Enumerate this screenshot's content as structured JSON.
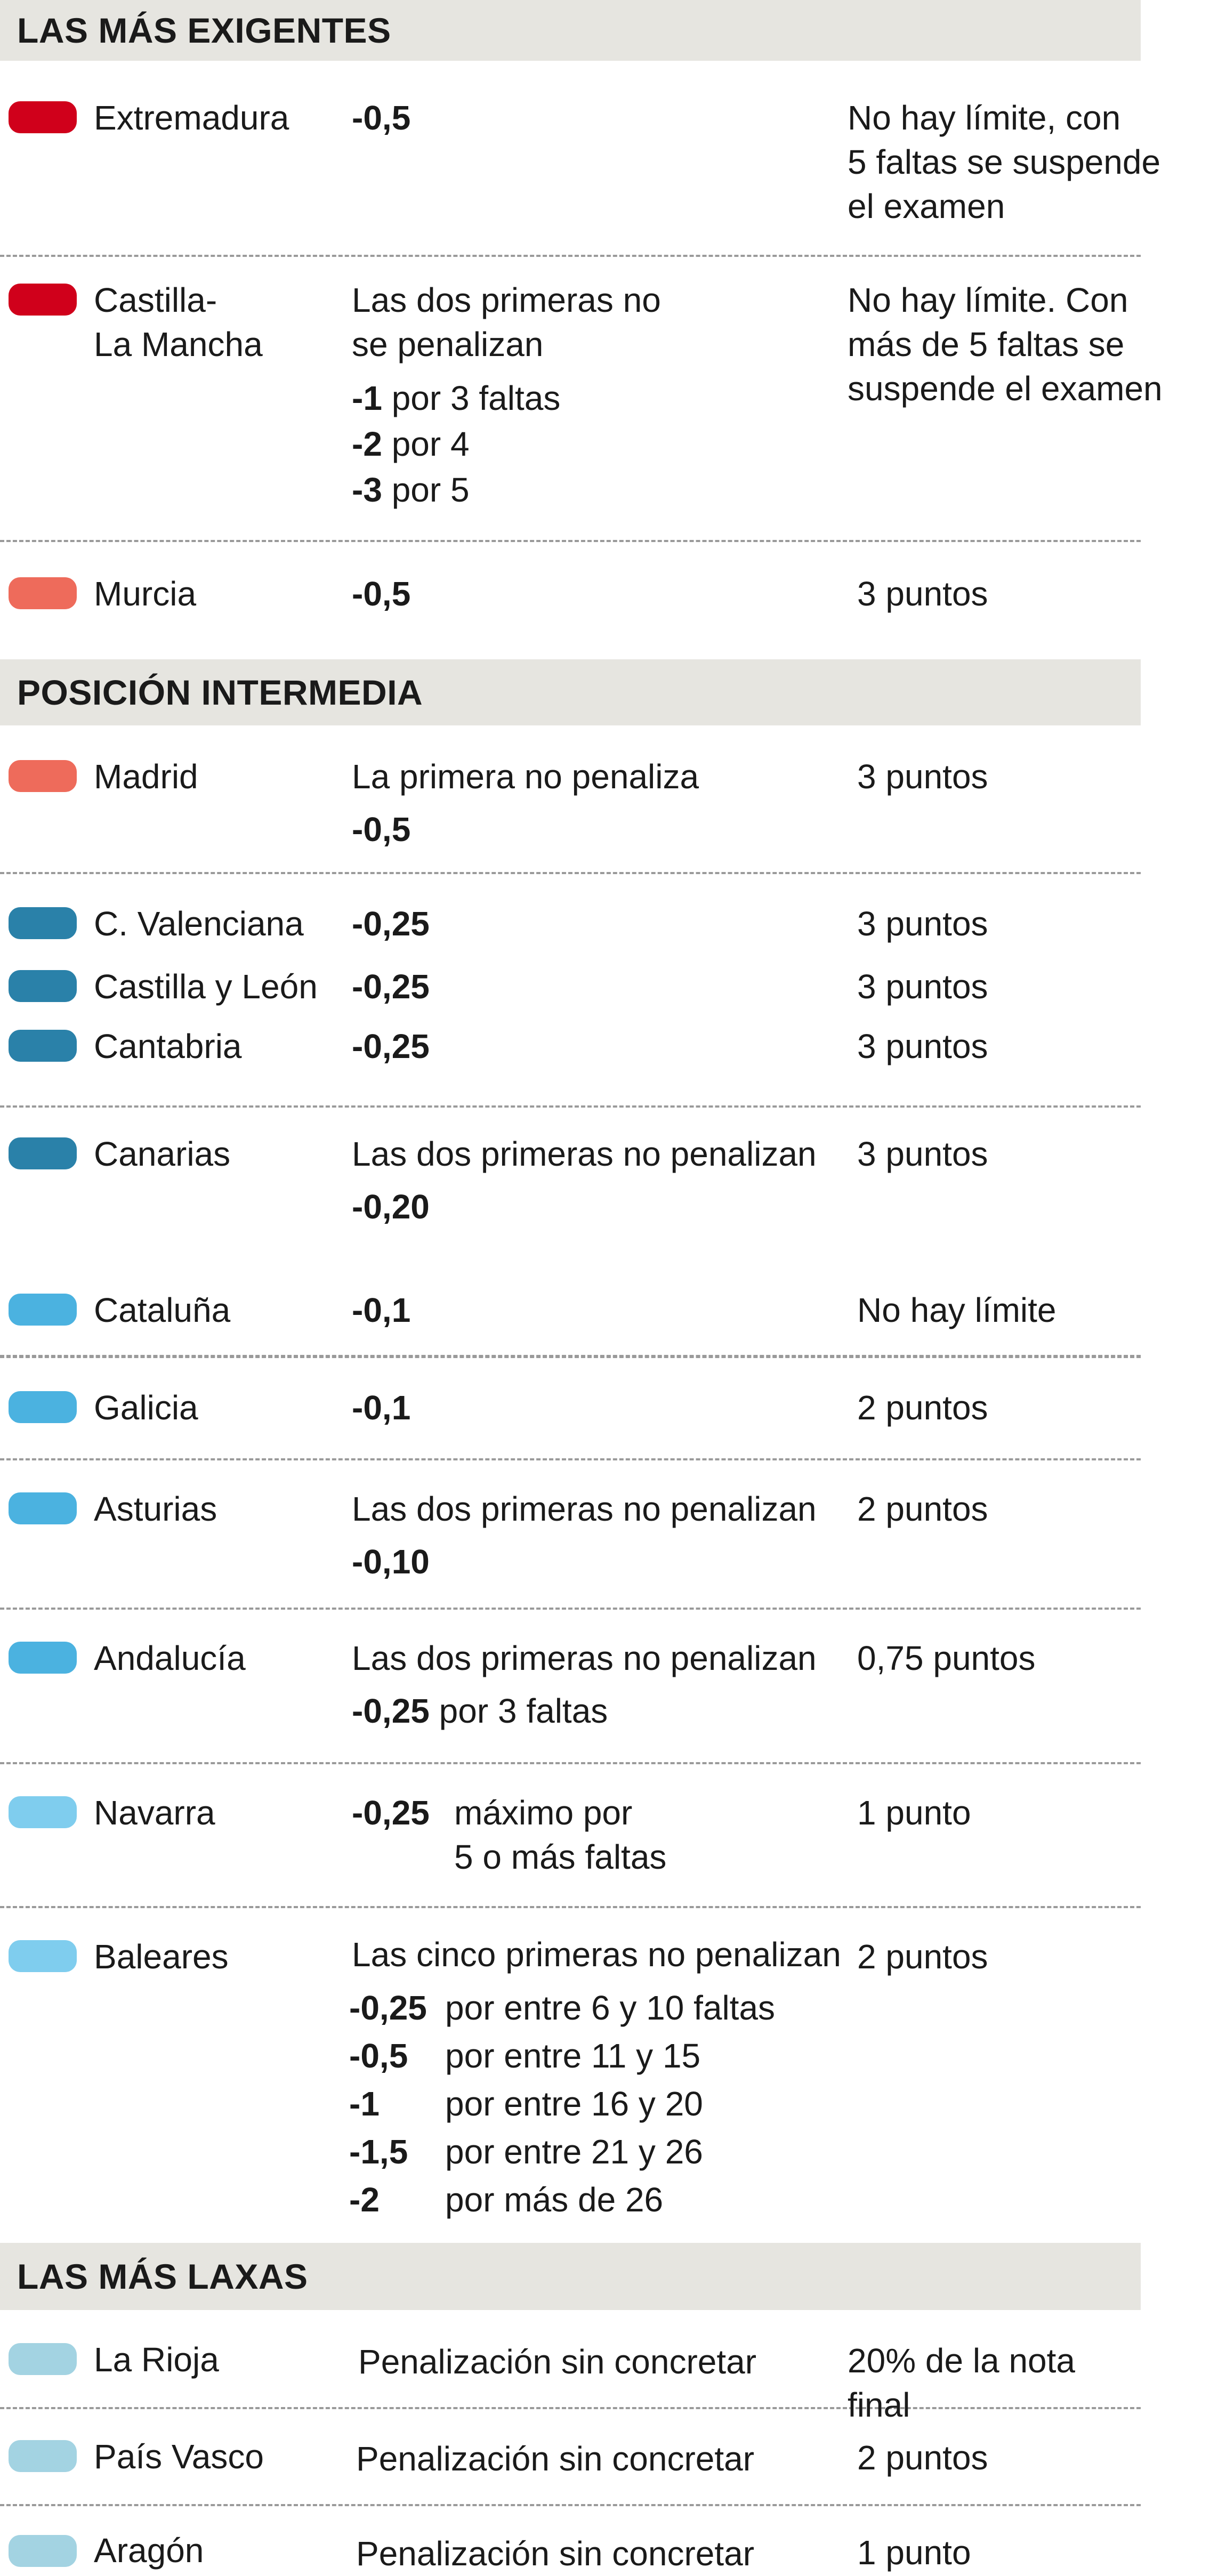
{
  "colors": {
    "header_bg": "#e6e5e0",
    "red": "#d0001b",
    "salmon": "#ee6b5b",
    "teal": "#2a81a9",
    "blue": "#4bb2e0",
    "light_blue": "#7fcdee",
    "pale": "#a3d3e2",
    "divider": "#9a9a9a"
  },
  "sections": {
    "exigentes": "LAS MÁS EXIGENTES",
    "intermedia": "POSICIÓN INTERMEDIA",
    "laxas": "LAS MÁS LAXAS"
  },
  "rows": {
    "extremadura": {
      "region": "Extremadura",
      "penalty": "-0,5",
      "limit_lines": [
        "No hay límite, con",
        "5 faltas se suspende",
        "el examen"
      ]
    },
    "castilla_lm": {
      "region_lines": [
        "Castilla-",
        "La Mancha"
      ],
      "penalty_lines": [
        "Las dos primeras no",
        "se penalizan"
      ],
      "sub": [
        {
          "num": "-1",
          "text": " por 3 faltas"
        },
        {
          "num": "-2",
          "text": " por 4"
        },
        {
          "num": "-3",
          "text": " por 5"
        }
      ],
      "limit_lines": [
        "No hay límite. Con",
        "más de 5 faltas se",
        "suspende el examen"
      ]
    },
    "murcia": {
      "region": "Murcia",
      "penalty": "-0,5",
      "limit": "3 puntos"
    },
    "madrid": {
      "region": "Madrid",
      "penalty_text": "La primera no penaliza",
      "penalty": "-0,5",
      "limit": "3 puntos"
    },
    "valenciana": {
      "region": "C. Valenciana",
      "penalty": "-0,25",
      "limit": "3 puntos"
    },
    "castilla_leon": {
      "region": "Castilla y León",
      "penalty": "-0,25",
      "limit": "3 puntos"
    },
    "cantabria": {
      "region": "Cantabria",
      "penalty": "-0,25",
      "limit": "3 puntos"
    },
    "canarias": {
      "region": "Canarias",
      "penalty_text": "Las dos primeras no penalizan",
      "penalty": "-0,20",
      "limit": "3 puntos"
    },
    "cataluna": {
      "region": "Cataluña",
      "penalty": "-0,1",
      "limit": "No hay límite"
    },
    "galicia": {
      "region": "Galicia",
      "penalty": "-0,1",
      "limit": "2 puntos"
    },
    "asturias": {
      "region": "Asturias",
      "penalty_text": "Las dos primeras no penalizan",
      "penalty": "-0,10",
      "limit": "2 puntos"
    },
    "andalucia": {
      "region": "Andalucía",
      "penalty_text": "Las dos primeras no penalizan",
      "penalty": "-0,25",
      "penalty_suffix": " por 3 faltas",
      "limit": "0,75 puntos"
    },
    "navarra": {
      "region": "Navarra",
      "penalty": "-0,25",
      "penalty_suffix_lines": [
        "máximo por",
        "5 o más faltas"
      ],
      "limit": "1 punto"
    },
    "baleares": {
      "region": "Baleares",
      "penalty_text": "Las cinco primeras no penalizan",
      "sub": [
        {
          "num": "-0,25",
          "text": "por entre 6 y 10 faltas"
        },
        {
          "num": "-0,5",
          "text": "por entre 11 y 15"
        },
        {
          "num": "-1",
          "text": "por entre 16 y 20"
        },
        {
          "num": "-1,5",
          "text": "por entre 21 y 26"
        },
        {
          "num": "-2",
          "text": "por más de 26"
        }
      ],
      "limit": "2 puntos"
    },
    "rioja": {
      "region": "La Rioja",
      "penalty_text": "Penalización sin concretar",
      "limit": "20% de la nota final"
    },
    "vasco": {
      "region": "País Vasco",
      "penalty_text": "Penalización sin concretar",
      "limit": "2 puntos"
    },
    "aragon": {
      "region": "Aragón",
      "penalty_text": "Penalización sin concretar",
      "limit": "1 punto"
    }
  }
}
